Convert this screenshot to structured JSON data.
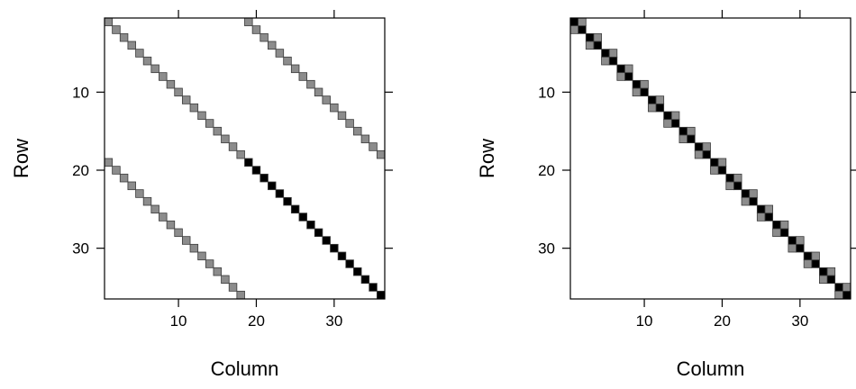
{
  "chart_data": [
    {
      "type": "heatmap",
      "title": "",
      "xlabel": "Column",
      "ylabel": "Row",
      "xlim": [
        0.5,
        36.5
      ],
      "ylim": [
        36.5,
        0.5
      ],
      "xticks": [
        10,
        20,
        30
      ],
      "yticks": [
        10,
        20,
        30
      ],
      "grid": false,
      "values": "entries of a 36x36 sparse matrix; row 1 at top",
      "series": [
        {
          "shade": "#8c8c8c",
          "points": [
            [
              1,
              1
            ],
            [
              2,
              2
            ],
            [
              3,
              3
            ],
            [
              4,
              4
            ],
            [
              5,
              5
            ],
            [
              6,
              6
            ],
            [
              7,
              7
            ],
            [
              8,
              8
            ],
            [
              9,
              9
            ],
            [
              10,
              10
            ],
            [
              11,
              11
            ],
            [
              12,
              12
            ],
            [
              13,
              13
            ],
            [
              14,
              14
            ],
            [
              15,
              15
            ],
            [
              16,
              16
            ],
            [
              17,
              17
            ],
            [
              18,
              18
            ],
            [
              1,
              19
            ],
            [
              2,
              20
            ],
            [
              3,
              21
            ],
            [
              4,
              22
            ],
            [
              5,
              23
            ],
            [
              6,
              24
            ],
            [
              7,
              25
            ],
            [
              8,
              26
            ],
            [
              9,
              27
            ],
            [
              10,
              28
            ],
            [
              11,
              29
            ],
            [
              12,
              30
            ],
            [
              13,
              31
            ],
            [
              14,
              32
            ],
            [
              15,
              33
            ],
            [
              16,
              34
            ],
            [
              17,
              35
            ],
            [
              18,
              36
            ],
            [
              19,
              1
            ],
            [
              20,
              2
            ],
            [
              21,
              3
            ],
            [
              22,
              4
            ],
            [
              23,
              5
            ],
            [
              24,
              6
            ],
            [
              25,
              7
            ],
            [
              26,
              8
            ],
            [
              27,
              9
            ],
            [
              28,
              10
            ],
            [
              29,
              11
            ],
            [
              30,
              12
            ],
            [
              31,
              13
            ],
            [
              32,
              14
            ],
            [
              33,
              15
            ],
            [
              34,
              16
            ],
            [
              35,
              17
            ],
            [
              36,
              18
            ]
          ]
        },
        {
          "shade": "#000000",
          "points": [
            [
              19,
              19
            ],
            [
              20,
              20
            ],
            [
              21,
              21
            ],
            [
              22,
              22
            ],
            [
              23,
              23
            ],
            [
              24,
              24
            ],
            [
              25,
              25
            ],
            [
              26,
              26
            ],
            [
              27,
              27
            ],
            [
              28,
              28
            ],
            [
              29,
              29
            ],
            [
              30,
              30
            ],
            [
              31,
              31
            ],
            [
              32,
              32
            ],
            [
              33,
              33
            ],
            [
              34,
              34
            ],
            [
              35,
              35
            ],
            [
              36,
              36
            ]
          ]
        }
      ]
    },
    {
      "type": "heatmap",
      "title": "",
      "xlabel": "Column",
      "ylabel": "Row",
      "xlim": [
        0.5,
        36.5
      ],
      "ylim": [
        36.5,
        0.5
      ],
      "xticks": [
        10,
        20,
        30
      ],
      "yticks": [
        10,
        20,
        30
      ],
      "grid": false,
      "values": "entries of a 36x36 sparse matrix after reordering; row 1 at top",
      "series": [
        {
          "shade": "#000000",
          "points": [
            [
              1,
              1
            ],
            [
              2,
              2
            ],
            [
              3,
              3
            ],
            [
              4,
              4
            ],
            [
              5,
              5
            ],
            [
              6,
              6
            ],
            [
              7,
              7
            ],
            [
              8,
              8
            ],
            [
              9,
              9
            ],
            [
              10,
              10
            ],
            [
              11,
              11
            ],
            [
              12,
              12
            ],
            [
              13,
              13
            ],
            [
              14,
              14
            ],
            [
              15,
              15
            ],
            [
              16,
              16
            ],
            [
              17,
              17
            ],
            [
              18,
              18
            ],
            [
              19,
              19
            ],
            [
              20,
              20
            ],
            [
              21,
              21
            ],
            [
              22,
              22
            ],
            [
              23,
              23
            ],
            [
              24,
              24
            ],
            [
              25,
              25
            ],
            [
              26,
              26
            ],
            [
              27,
              27
            ],
            [
              28,
              28
            ],
            [
              29,
              29
            ],
            [
              30,
              30
            ],
            [
              31,
              31
            ],
            [
              32,
              32
            ],
            [
              33,
              33
            ],
            [
              34,
              34
            ],
            [
              35,
              35
            ],
            [
              36,
              36
            ]
          ]
        },
        {
          "shade": "#8c8c8c",
          "points": [
            [
              1,
              2
            ],
            [
              2,
              1
            ],
            [
              3,
              4
            ],
            [
              4,
              3
            ],
            [
              5,
              6
            ],
            [
              6,
              5
            ],
            [
              7,
              8
            ],
            [
              8,
              7
            ],
            [
              9,
              10
            ],
            [
              10,
              9
            ],
            [
              11,
              12
            ],
            [
              12,
              11
            ],
            [
              13,
              14
            ],
            [
              14,
              13
            ],
            [
              15,
              16
            ],
            [
              16,
              15
            ],
            [
              17,
              18
            ],
            [
              18,
              17
            ],
            [
              19,
              20
            ],
            [
              20,
              19
            ],
            [
              21,
              22
            ],
            [
              22,
              21
            ],
            [
              23,
              24
            ],
            [
              24,
              23
            ],
            [
              25,
              26
            ],
            [
              26,
              25
            ],
            [
              27,
              28
            ],
            [
              28,
              27
            ],
            [
              29,
              30
            ],
            [
              30,
              29
            ],
            [
              31,
              32
            ],
            [
              32,
              31
            ],
            [
              33,
              34
            ],
            [
              34,
              33
            ],
            [
              35,
              36
            ],
            [
              36,
              35
            ]
          ]
        }
      ]
    }
  ]
}
